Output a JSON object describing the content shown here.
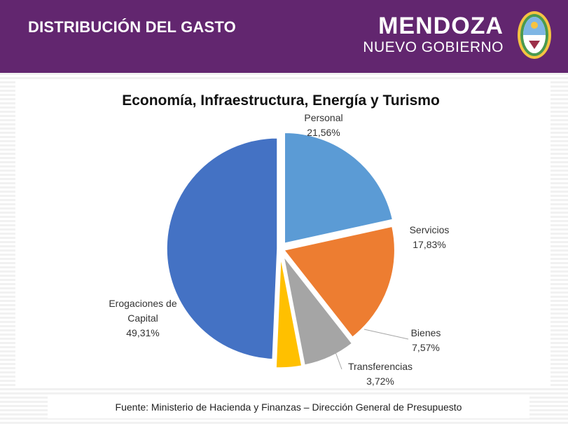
{
  "header": {
    "title": "DISTRIBUCIÓN DEL GASTO"
  },
  "brand": {
    "name": "MENDOZA",
    "subtitle": "NUEVO GOBIERNO",
    "seal_icon": "coat-of-arms-icon"
  },
  "footer": {
    "source": "Fuente: Ministerio de Hacienda y Finanzas – Dirección General de Presupuesto"
  },
  "colors": {
    "header_bg": "#62266f"
  },
  "chart_data": {
    "type": "pie",
    "title": "Economía, Infraestructura, Energía y Turismo",
    "slices": [
      {
        "label": "Personal",
        "value_label": "21,56%",
        "value": 21.56,
        "color": "#5b9bd5"
      },
      {
        "label": "Servicios",
        "value_label": "17,83%",
        "value": 17.83,
        "color": "#ed7d31"
      },
      {
        "label": "Bienes",
        "value_label": "7,57%",
        "value": 7.57,
        "color": "#a5a5a5"
      },
      {
        "label": "Transferencias",
        "value_label": "3,72%",
        "value": 3.72,
        "color": "#ffc000"
      },
      {
        "label": "Erogaciones de Capital",
        "value_label": "49,31%",
        "value": 49.31,
        "color": "#4472c4"
      }
    ],
    "legend": "none"
  }
}
